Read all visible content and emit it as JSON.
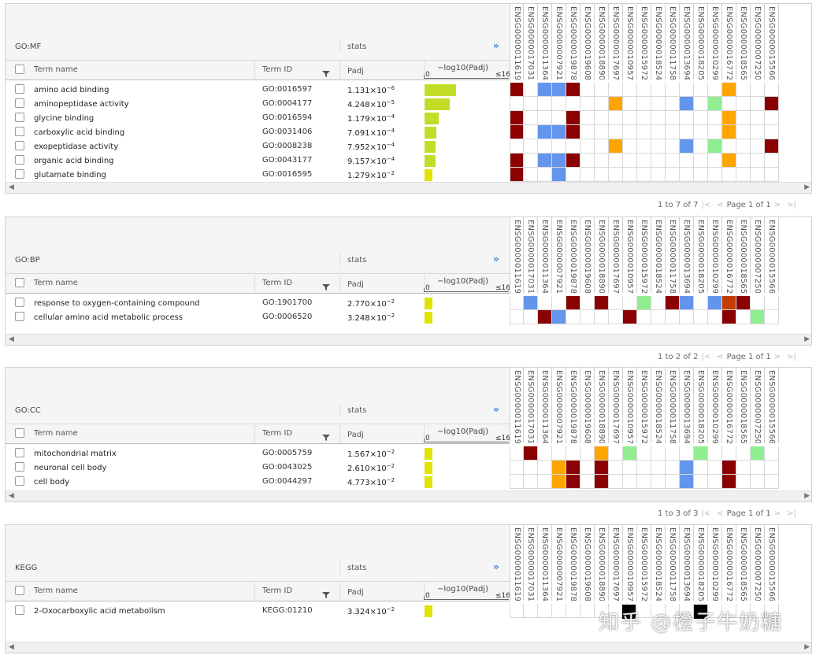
{
  "columns": {
    "term_name": "Term name",
    "term_id": "Term ID",
    "stats": "stats",
    "padj": "Padj",
    "axis_label": "−log10(Padj)",
    "axis_min": "0",
    "axis_max": "≤16",
    "expand": "»"
  },
  "genes": [
    "ENSG00000116198",
    "ENSG00000170312",
    "ENSG00000113643",
    "ENSG00000079215",
    "ENSG00000198785",
    "ENSG00000196083",
    "ENSG00000188906",
    "ENSG00000176978",
    "ENSG00000109576",
    "ENSG00000159720",
    "ENSG00000185245",
    "ENSG00000117586",
    "ENSG00000136943",
    "ENSG00000182054",
    "ENSG00000102996",
    "ENSG00000167720",
    "ENSG00000185650",
    "ENSG00000072506",
    "ENSG00000155666"
  ],
  "colors": {
    "red": "#8b0000",
    "blue": "#6495ed",
    "orange": "#ffa500",
    "lightgreen": "#90ee90",
    "orangered": "#c43c00",
    "bar": "#c3dc28",
    "bar_low": "#e2e200"
  },
  "sections": [
    {
      "title": "GO:MF",
      "rows": [
        {
          "term": "amino acid binding",
          "id": "GO:0016597",
          "padj_m": "1.131",
          "padj_e": "−6",
          "log": 5.95,
          "cells": {
            "0": "red",
            "2": "blue",
            "3": "blue",
            "4": "red",
            "15": "orange"
          }
        },
        {
          "term": "aminopeptidase activity",
          "id": "GO:0004177",
          "padj_m": "4.248",
          "padj_e": "−5",
          "log": 4.37,
          "cells": {
            "7": "orange",
            "12": "blue",
            "14": "lightgreen",
            "18": "red"
          }
        },
        {
          "term": "glycine binding",
          "id": "GO:0016594",
          "padj_m": "1.179",
          "padj_e": "−4",
          "log": 3.93,
          "cells": {
            "0": "red",
            "4": "red",
            "15": "orange"
          }
        },
        {
          "term": "carboxylic acid binding",
          "id": "GO:0031406",
          "padj_m": "7.091",
          "padj_e": "−4",
          "log": 3.15,
          "cells": {
            "0": "red",
            "2": "blue",
            "3": "blue",
            "4": "red",
            "15": "orange"
          }
        },
        {
          "term": "exopeptidase activity",
          "id": "GO:0008238",
          "padj_m": "7.952",
          "padj_e": "−4",
          "log": 3.1,
          "cells": {
            "7": "orange",
            "12": "blue",
            "14": "lightgreen",
            "18": "red"
          }
        },
        {
          "term": "organic acid binding",
          "id": "GO:0043177",
          "padj_m": "9.157",
          "padj_e": "−4",
          "log": 3.04,
          "cells": {
            "0": "red",
            "2": "blue",
            "3": "blue",
            "4": "red",
            "15": "orange"
          }
        },
        {
          "term": "glutamate binding",
          "id": "GO:0016595",
          "padj_m": "1.279",
          "padj_e": "−2",
          "log": 1.89,
          "cells": {
            "0": "red",
            "3": "blue"
          }
        }
      ],
      "pager": {
        "range": "1 to 7 of 7",
        "page": "Page 1 of 1"
      }
    },
    {
      "title": "GO:BP",
      "rows": [
        {
          "term": "response to oxygen-containing compound",
          "id": "GO:1901700",
          "padj_m": "2.770",
          "padj_e": "−2",
          "log": 1.56,
          "cells": {
            "1": "blue",
            "4": "red",
            "6": "red",
            "9": "lightgreen",
            "11": "red",
            "12": "blue",
            "14": "blue",
            "15": "orangered",
            "16": "red"
          }
        },
        {
          "term": "cellular amino acid metabolic process",
          "id": "GO:0006520",
          "padj_m": "3.248",
          "padj_e": "−2",
          "log": 1.49,
          "cells": {
            "2": "red",
            "3": "blue",
            "8": "red",
            "15": "red",
            "17": "lightgreen"
          }
        }
      ],
      "pager": {
        "range": "1 to 2 of 2",
        "page": "Page 1 of 1"
      }
    },
    {
      "title": "GO:CC",
      "rows": [
        {
          "term": "mitochondrial matrix",
          "id": "GO:0005759",
          "padj_m": "1.567",
          "padj_e": "−2",
          "log": 1.8,
          "cells": {
            "1": "red",
            "6": "orange",
            "8": "lightgreen",
            "13": "lightgreen",
            "17": "lightgreen"
          }
        },
        {
          "term": "neuronal cell body",
          "id": "GO:0043025",
          "padj_m": "2.610",
          "padj_e": "−2",
          "log": 1.58,
          "cells": {
            "3": "orange",
            "4": "red",
            "6": "red",
            "12": "blue",
            "15": "red"
          }
        },
        {
          "term": "cell body",
          "id": "GO:0044297",
          "padj_m": "4.773",
          "padj_e": "−2",
          "log": 1.32,
          "cells": {
            "3": "orange",
            "4": "red",
            "6": "red",
            "12": "blue",
            "15": "red"
          }
        }
      ],
      "pager": {
        "range": "1 to 3 of 3",
        "page": "Page 1 of 1"
      }
    },
    {
      "title": "KEGG",
      "rows": [
        {
          "term": "2-Oxocarboxylic acid metabolism",
          "id": "KEGG:01210",
          "padj_m": "3.324",
          "padj_e": "−2",
          "log": 1.48,
          "cells": {}
        }
      ],
      "pager": null
    }
  ],
  "watermark": "知乎 @橙子牛奶糖"
}
